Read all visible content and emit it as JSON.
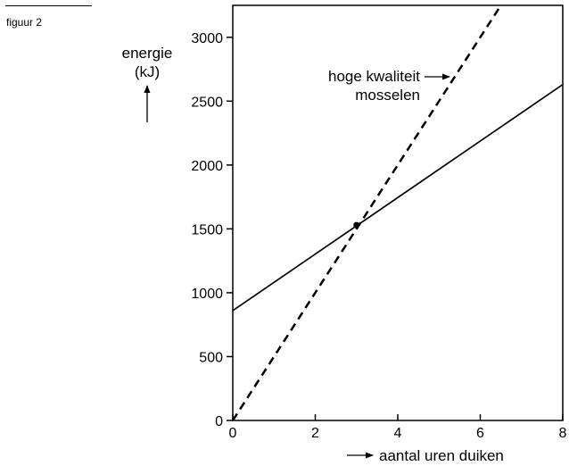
{
  "figure": {
    "label": "figuur 2"
  },
  "chart_data": {
    "type": "line",
    "ylabel": [
      "energie",
      "(kJ)"
    ],
    "xlabel": "aantal uren duiken",
    "xlim": [
      0,
      8
    ],
    "ylim": [
      0,
      3250
    ],
    "x_ticks": [
      0,
      2,
      4,
      6,
      8
    ],
    "y_ticks": [
      0,
      500,
      1000,
      1500,
      2000,
      2500,
      3000
    ],
    "series": [
      {
        "style": "solid",
        "x": [
          0,
          8
        ],
        "y": [
          860,
          2630
        ]
      },
      {
        "name": "hoge kwaliteit mosselen",
        "style": "dashed",
        "x": [
          0,
          6.5
        ],
        "y": [
          0,
          3250
        ]
      }
    ],
    "annotation": {
      "text": [
        "hoge kwaliteit",
        "mosselen"
      ],
      "arrow": true
    },
    "points": [
      {
        "x": 3,
        "y": 1530
      }
    ]
  }
}
